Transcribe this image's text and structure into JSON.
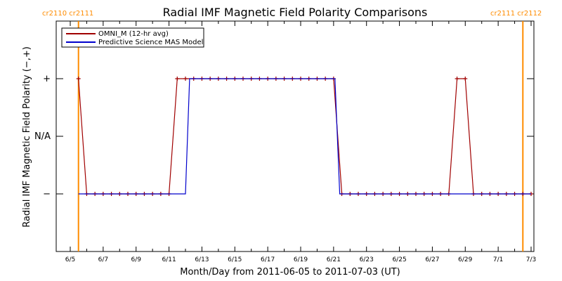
{
  "chart_data": {
    "type": "line",
    "title": "Radial IMF Magnetic Field Polarity Comparisons",
    "xlabel": "Month/Day from 2011-06-05 to 2011-07-03 (UT)",
    "ylabel": "Radial IMF Magnetic Field Polarity (−,+)",
    "x_range": [
      "2011-06-05",
      "2011-07-03"
    ],
    "x_ticks": [
      "6/5",
      "6/7",
      "6/9",
      "6/11",
      "6/13",
      "6/15",
      "6/17",
      "6/19",
      "6/21",
      "6/23",
      "6/25",
      "6/27",
      "6/29",
      "7/1",
      "7/3"
    ],
    "y_ticks": [
      {
        "value": 1,
        "label": "+"
      },
      {
        "value": 0,
        "label": "N/A"
      },
      {
        "value": -1,
        "label": "−"
      }
    ],
    "ylim": [
      -2,
      2
    ],
    "colors": {
      "omni": "#a00000",
      "mas": "#0000cc",
      "cr_lines": "#ff8c00"
    },
    "carrington": [
      {
        "date": "2011-06-05T12:00",
        "label": "cr2110 cr2111"
      },
      {
        "date": "2011-07-02T12:00",
        "label": "cr2111 cr2112"
      }
    ],
    "series": [
      {
        "name": "OMNI_M (12-hr avg)",
        "points": [
          [
            "2011-06-05T12:00",
            1
          ],
          [
            "2011-06-06T00:00",
            -1
          ],
          [
            "2011-06-06T12:00",
            -1
          ],
          [
            "2011-06-07T00:00",
            -1
          ],
          [
            "2011-06-07T12:00",
            -1
          ],
          [
            "2011-06-08T00:00",
            -1
          ],
          [
            "2011-06-08T12:00",
            -1
          ],
          [
            "2011-06-09T00:00",
            -1
          ],
          [
            "2011-06-09T12:00",
            -1
          ],
          [
            "2011-06-10T00:00",
            -1
          ],
          [
            "2011-06-10T12:00",
            -1
          ],
          [
            "2011-06-11T00:00",
            -1
          ],
          [
            "2011-06-11T12:00",
            1
          ],
          [
            "2011-06-12T00:00",
            1
          ],
          [
            "2011-06-12T12:00",
            1
          ],
          [
            "2011-06-13T00:00",
            1
          ],
          [
            "2011-06-13T12:00",
            1
          ],
          [
            "2011-06-14T00:00",
            1
          ],
          [
            "2011-06-14T12:00",
            1
          ],
          [
            "2011-06-15T00:00",
            1
          ],
          [
            "2011-06-15T12:00",
            1
          ],
          [
            "2011-06-16T00:00",
            1
          ],
          [
            "2011-06-16T12:00",
            1
          ],
          [
            "2011-06-17T00:00",
            1
          ],
          [
            "2011-06-17T12:00",
            1
          ],
          [
            "2011-06-18T00:00",
            1
          ],
          [
            "2011-06-18T12:00",
            1
          ],
          [
            "2011-06-19T00:00",
            1
          ],
          [
            "2011-06-19T12:00",
            1
          ],
          [
            "2011-06-20T00:00",
            1
          ],
          [
            "2011-06-20T12:00",
            1
          ],
          [
            "2011-06-21T00:00",
            1
          ],
          [
            "2011-06-21T12:00",
            -1
          ],
          [
            "2011-06-22T00:00",
            -1
          ],
          [
            "2011-06-22T12:00",
            -1
          ],
          [
            "2011-06-23T00:00",
            -1
          ],
          [
            "2011-06-23T12:00",
            -1
          ],
          [
            "2011-06-24T00:00",
            -1
          ],
          [
            "2011-06-24T12:00",
            -1
          ],
          [
            "2011-06-25T00:00",
            -1
          ],
          [
            "2011-06-25T12:00",
            -1
          ],
          [
            "2011-06-26T00:00",
            -1
          ],
          [
            "2011-06-26T12:00",
            -1
          ],
          [
            "2011-06-27T00:00",
            -1
          ],
          [
            "2011-06-27T12:00",
            -1
          ],
          [
            "2011-06-28T00:00",
            -1
          ],
          [
            "2011-06-28T12:00",
            1
          ],
          [
            "2011-06-29T00:00",
            1
          ],
          [
            "2011-06-29T12:00",
            -1
          ],
          [
            "2011-06-30T00:00",
            -1
          ],
          [
            "2011-06-30T12:00",
            -1
          ],
          [
            "2011-07-01T00:00",
            -1
          ],
          [
            "2011-07-01T12:00",
            -1
          ],
          [
            "2011-07-02T00:00",
            -1
          ],
          [
            "2011-07-02T12:00",
            -1
          ],
          [
            "2011-07-03T00:00",
            -1
          ]
        ]
      },
      {
        "name": "Predictive Science MAS Model",
        "points": [
          [
            "2011-06-05T12:00",
            -1
          ],
          [
            "2011-06-12T00:00",
            -1
          ],
          [
            "2011-06-12T06:00",
            1
          ],
          [
            "2011-06-21T02:00",
            1
          ],
          [
            "2011-06-21T09:00",
            -1
          ],
          [
            "2011-07-03T00:00",
            -1
          ]
        ]
      }
    ]
  }
}
